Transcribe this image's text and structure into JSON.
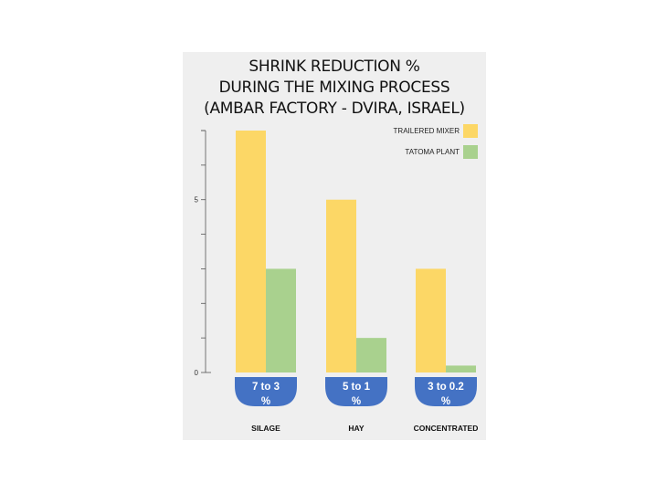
{
  "chart_data": {
    "type": "bar",
    "title_lines": [
      "SHRINK REDUCTION %",
      "DURING THE MIXING PROCESS",
      "(AMBAR FACTORY - DVIRA, ISRAEL)"
    ],
    "categories": [
      "SILAGE",
      "HAY",
      "CONCENTRATED"
    ],
    "badges": [
      [
        "7 to 3",
        "%"
      ],
      [
        "5 to 1",
        "%"
      ],
      [
        "3 to 0.2",
        "%"
      ]
    ],
    "series": [
      {
        "name": "TRAILERED MIXER",
        "color": "#fcd766",
        "values": [
          7,
          5,
          3
        ]
      },
      {
        "name": "TATOMA PLANT",
        "color": "#a9d18e",
        "values": [
          3,
          1,
          0.2
        ]
      }
    ],
    "ylim": [
      0,
      7
    ],
    "y_tick_labels": [
      {
        "value": 0,
        "label": "0"
      },
      {
        "value": 5,
        "label": "5"
      }
    ],
    "y_minor_ticks": [
      1,
      2,
      3,
      4,
      5,
      6,
      7
    ],
    "legend_position": "top-right",
    "badge_color": "#4472c4",
    "grid": false
  }
}
